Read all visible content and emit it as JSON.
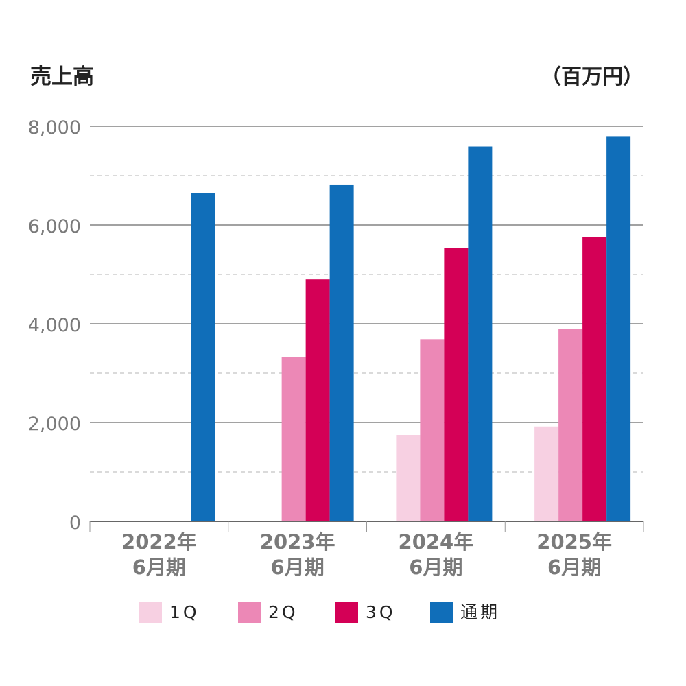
{
  "title": "売上高",
  "unit": "（百万円）",
  "chart_data": {
    "type": "bar",
    "title": "売上高",
    "ylabel": "（百万円）",
    "ylim": [
      0,
      8000
    ],
    "yticks": [
      "0",
      "2,000",
      "4,000",
      "6,000",
      "8,000"
    ],
    "grid": true,
    "legend_position": "bottom",
    "categories": [
      [
        "2022年",
        "6月期"
      ],
      [
        "2023年",
        "6月期"
      ],
      [
        "2024年",
        "6月期"
      ],
      [
        "2025年",
        "6月期"
      ]
    ],
    "series": [
      {
        "name": "1Q",
        "color": "#f7d0e2",
        "values": [
          null,
          null,
          1750,
          1920
        ]
      },
      {
        "name": "2Q",
        "color": "#ec88b6",
        "values": [
          null,
          3330,
          3690,
          3900
        ]
      },
      {
        "name": "3Q",
        "color": "#d40056",
        "values": [
          null,
          4900,
          5530,
          5760
        ]
      },
      {
        "name": "通期",
        "color": "#106eb9",
        "values": [
          6650,
          6820,
          7590,
          7800
        ]
      }
    ]
  }
}
